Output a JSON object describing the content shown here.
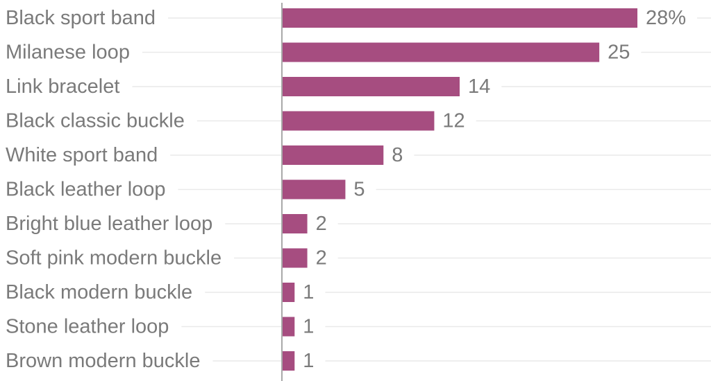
{
  "colors": {
    "bar": "#a64d80",
    "text": "#7a7a7a",
    "axis": "#a9a9a9",
    "guide": "#e9e9e9"
  },
  "chart_data": {
    "type": "bar",
    "orientation": "horizontal",
    "categories": [
      "Black sport band",
      "Milanese loop",
      "Link bracelet",
      "Black classic buckle",
      "White sport band",
      "Black leather loop",
      "Bright blue leather loop",
      "Soft pink modern buckle",
      "Black modern buckle",
      "Stone leather loop",
      "Brown modern buckle"
    ],
    "values": [
      28,
      25,
      14,
      12,
      8,
      5,
      2,
      2,
      1,
      1,
      1
    ],
    "value_labels": [
      "28%",
      "25",
      "14",
      "12",
      "8",
      "5",
      "2",
      "2",
      "1",
      "1",
      "1"
    ],
    "unit": "%",
    "title": "",
    "xlabel": "",
    "ylabel": "",
    "xlim": [
      0,
      28
    ],
    "grid": false,
    "legend": "none"
  }
}
